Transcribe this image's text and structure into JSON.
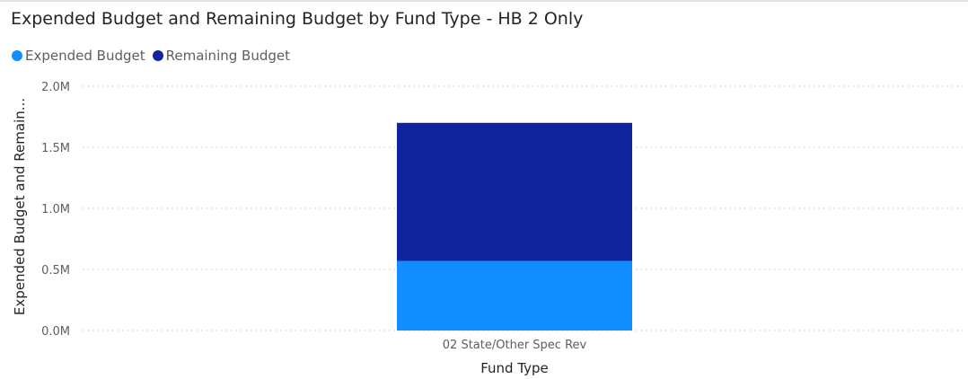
{
  "chart_data": {
    "type": "bar",
    "stacked": true,
    "title": "Expended Budget and Remaining Budget by Fund Type - HB 2 Only",
    "xlabel": "Fund Type",
    "ylabel": "Expended Budget and Remain...",
    "categories": [
      "02 State/Other Spec Rev"
    ],
    "series": [
      {
        "name": "Expended Budget",
        "color": "#118dff",
        "values": [
          0.57
        ]
      },
      {
        "name": "Remaining Budget",
        "color": "#12239e",
        "values": [
          1.13
        ]
      }
    ],
    "ylim": [
      0,
      2.0
    ],
    "yticks": [
      {
        "value": 0.0,
        "label": "0.0M"
      },
      {
        "value": 0.5,
        "label": "0.5M"
      },
      {
        "value": 1.0,
        "label": "1.0M"
      },
      {
        "value": 1.5,
        "label": "1.5M"
      },
      {
        "value": 2.0,
        "label": "2.0M"
      }
    ],
    "units": "millions",
    "grid": true,
    "legend_position": "top-left"
  }
}
